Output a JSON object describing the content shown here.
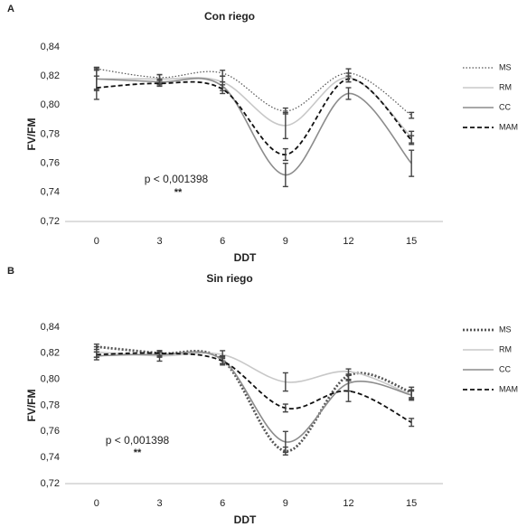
{
  "chart_data": [
    {
      "type": "line",
      "panel": "A",
      "title": "Con riego",
      "xlabel": "DDT",
      "ylabel": "FV/FM",
      "annotations": [
        "p < 0,001398",
        "**"
      ],
      "x": [
        0,
        3,
        6,
        9,
        12,
        15
      ],
      "xlim": [
        -1.5,
        16.5
      ],
      "xticks": [
        0,
        3,
        6,
        9,
        12,
        15
      ],
      "ylim": [
        0.72,
        0.84
      ],
      "yticks": [
        {
          "value": 0.72,
          "label": "0,72"
        },
        {
          "value": 0.74,
          "label": "0,74"
        },
        {
          "value": 0.76,
          "label": "0,76"
        },
        {
          "value": 0.78,
          "label": "0,78"
        },
        {
          "value": 0.8,
          "label": "0,80"
        },
        {
          "value": 0.82,
          "label": "0,82"
        },
        {
          "value": 0.84,
          "label": "0,84"
        }
      ],
      "series": [
        {
          "name": "MS",
          "color": "#555555",
          "style": "dotted",
          "values": [
            0.825,
            0.819,
            0.822,
            0.796,
            0.822,
            0.793
          ],
          "errors": [
            0.001,
            0.002,
            0.002,
            0.002,
            0.003,
            0.002
          ]
        },
        {
          "name": "RM",
          "color": "#c8c8c8",
          "style": "solid",
          "values": [
            0.818,
            0.818,
            0.816,
            0.786,
            0.819,
            0.778
          ],
          "errors": [
            0.007,
            0.003,
            0.004,
            0.009,
            0.003,
            0.004
          ]
        },
        {
          "name": "CC",
          "color": "#8c8c8c",
          "style": "solid",
          "values": [
            0.818,
            0.816,
            0.813,
            0.752,
            0.808,
            0.76
          ],
          "errors": [
            0.008,
            0.002,
            0.003,
            0.008,
            0.004,
            0.009
          ]
        },
        {
          "name": "MAM",
          "color": "#111111",
          "style": "dashed",
          "values": [
            0.812,
            0.815,
            0.811,
            0.766,
            0.818,
            0.776
          ],
          "errors": [
            0.008,
            0.002,
            0.003,
            0.004,
            0.002,
            0.003
          ]
        }
      ]
    },
    {
      "type": "line",
      "panel": "B",
      "title": "Sin riego",
      "xlabel": "DDT",
      "ylabel": "FV/FM",
      "annotations": [
        "p < 0,001398",
        "**"
      ],
      "x": [
        0,
        3,
        6,
        9,
        12,
        15
      ],
      "xlim": [
        -1.5,
        16.5
      ],
      "xticks": [
        0,
        3,
        6,
        9,
        12,
        15
      ],
      "ylim": [
        0.72,
        0.84
      ],
      "yticks": [
        {
          "value": 0.72,
          "label": "0,72"
        },
        {
          "value": 0.74,
          "label": "0,74"
        },
        {
          "value": 0.76,
          "label": "0,76"
        },
        {
          "value": 0.78,
          "label": "0,78"
        },
        {
          "value": 0.8,
          "label": "0,80"
        },
        {
          "value": 0.82,
          "label": "0,82"
        },
        {
          "value": 0.84,
          "label": "0,84"
        }
      ],
      "series": [
        {
          "name": "MS",
          "color": "#555555",
          "style": "thick-dotted",
          "values": [
            0.825,
            0.82,
            0.815,
            0.745,
            0.803,
            0.79
          ],
          "errors": [
            0.002,
            0.002,
            0.003,
            0.003,
            0.003,
            0.004
          ]
        },
        {
          "name": "RM",
          "color": "#c8c8c8",
          "style": "solid",
          "values": [
            0.821,
            0.818,
            0.819,
            0.798,
            0.806,
            0.788
          ],
          "errors": [
            0.004,
            0.004,
            0.003,
            0.007,
            0.002,
            0.003
          ]
        },
        {
          "name": "CC",
          "color": "#8c8c8c",
          "style": "solid",
          "values": [
            0.818,
            0.819,
            0.815,
            0.752,
            0.797,
            0.788
          ],
          "errors": [
            0.003,
            0.002,
            0.003,
            0.008,
            0.006,
            0.004
          ]
        },
        {
          "name": "MAM",
          "color": "#111111",
          "style": "dashed",
          "values": [
            0.819,
            0.82,
            0.814,
            0.778,
            0.791,
            0.767
          ],
          "errors": [
            0.002,
            0.002,
            0.003,
            0.003,
            0.008,
            0.003
          ]
        }
      ]
    }
  ]
}
